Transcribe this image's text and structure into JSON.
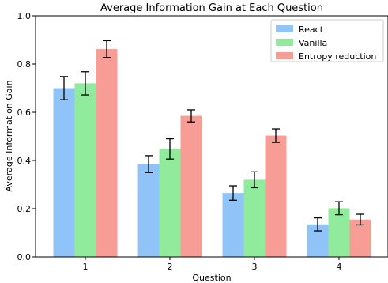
{
  "chart_data": {
    "type": "bar",
    "title": "Average Information Gain at Each Question",
    "xlabel": "Question",
    "ylabel": "Average Information Gain",
    "categories": [
      "1",
      "2",
      "3",
      "4"
    ],
    "ylim": [
      0,
      1.0
    ],
    "yticks": [
      "0.0",
      "0.2",
      "0.4",
      "0.6",
      "0.8",
      "1.0"
    ],
    "legend_position": "top-right",
    "grid": false,
    "series": [
      {
        "name": "React",
        "color": "#90c4f8",
        "values": [
          0.7,
          0.385,
          0.265,
          0.135
        ],
        "errors": [
          0.048,
          0.035,
          0.03,
          0.027
        ]
      },
      {
        "name": "Vanilla",
        "color": "#90ec9c",
        "values": [
          0.72,
          0.448,
          0.32,
          0.202
        ],
        "errors": [
          0.048,
          0.042,
          0.033,
          0.027
        ]
      },
      {
        "name": "Entropy reduction",
        "color": "#f89c96",
        "values": [
          0.862,
          0.585,
          0.503,
          0.155
        ],
        "errors": [
          0.035,
          0.025,
          0.028,
          0.022
        ]
      }
    ]
  }
}
